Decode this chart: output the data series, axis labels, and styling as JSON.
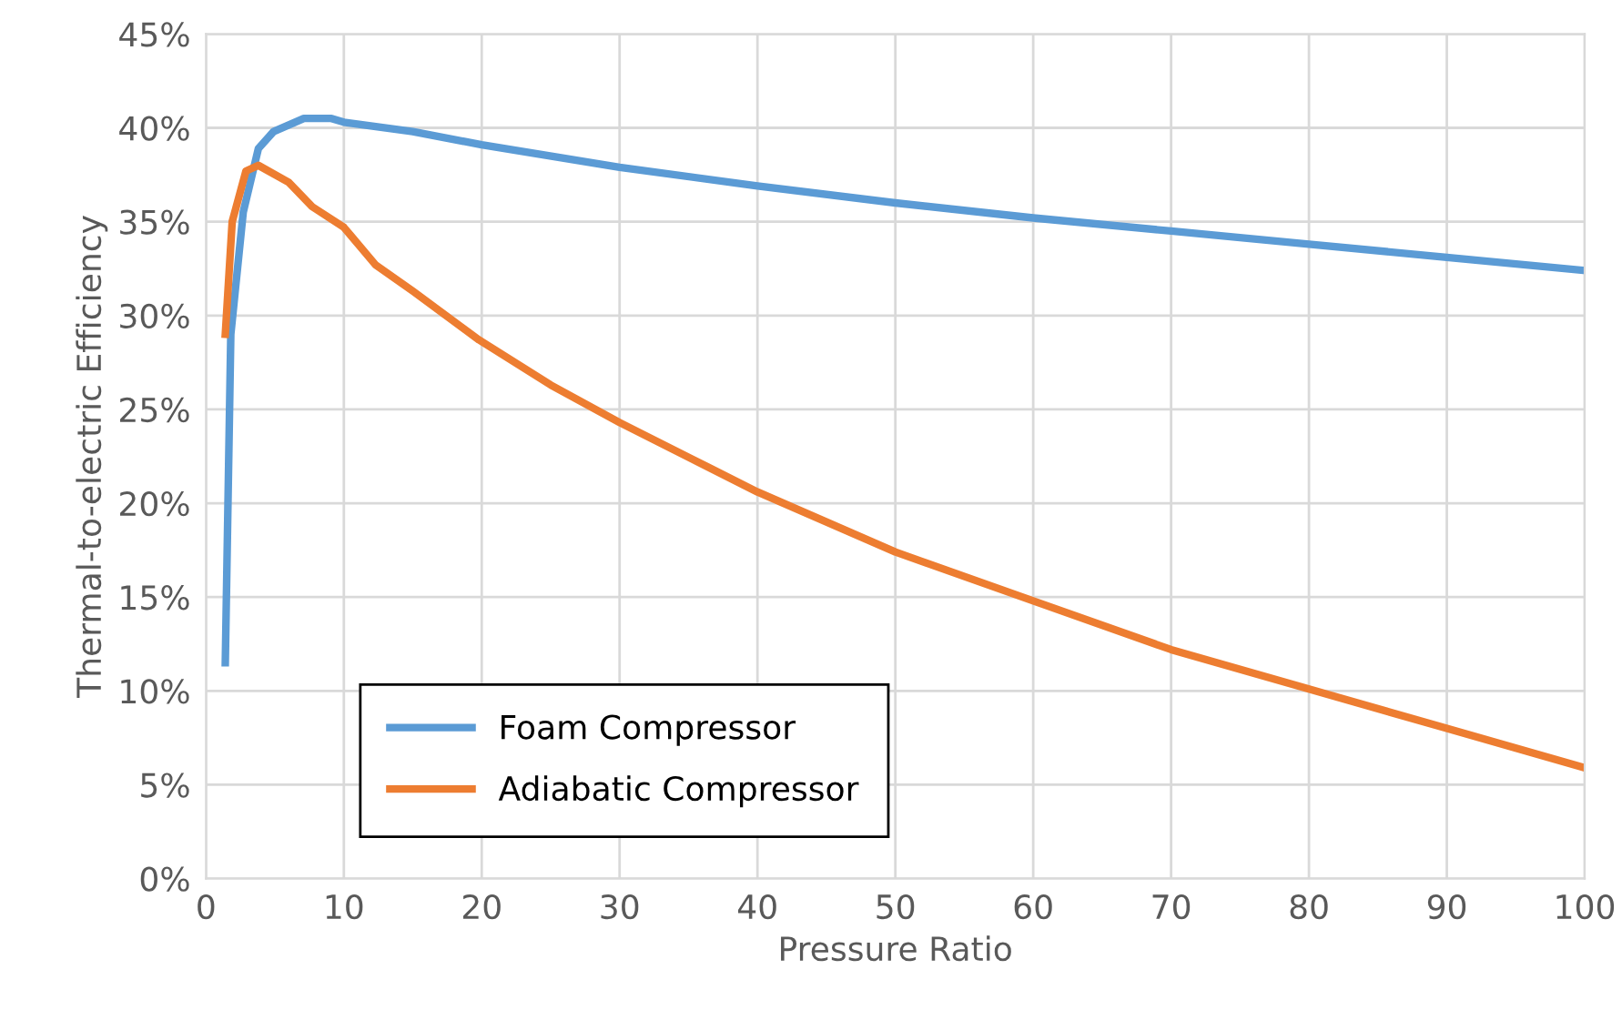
{
  "chart_data": {
    "type": "line",
    "xlabel": "Pressure Ratio",
    "ylabel": "Thermal-to-electric Efficiency",
    "xlim": [
      0,
      100
    ],
    "xticks": [
      0,
      10,
      20,
      30,
      40,
      50,
      60,
      70,
      80,
      90,
      100
    ],
    "ylim": [
      0,
      0.45
    ],
    "yticks": [
      {
        "value": 0,
        "label": "0%"
      },
      {
        "value": 0.05,
        "label": "5%"
      },
      {
        "value": 0.1,
        "label": "10%"
      },
      {
        "value": 0.15,
        "label": "15%"
      },
      {
        "value": 0.2,
        "label": "20%"
      },
      {
        "value": 0.25,
        "label": "25%"
      },
      {
        "value": 0.3,
        "label": "30%"
      },
      {
        "value": 0.35,
        "label": "35%"
      },
      {
        "value": 0.4,
        "label": "40%"
      },
      {
        "value": 0.45,
        "label": "45%"
      }
    ],
    "grid": true,
    "legend": "bottom left",
    "marker": "none",
    "line_style": "solid",
    "series": [
      {
        "name": "Foam Compressor",
        "color": "#5b9bd5",
        "x": [
          1.4,
          1.8,
          2.7,
          3.8,
          4.9,
          7.1,
          9.1,
          10,
          15,
          20,
          30,
          40,
          50,
          60,
          70,
          80,
          90,
          100
        ],
        "values": [
          0.115,
          0.29,
          0.355,
          0.389,
          0.398,
          0.405,
          0.405,
          0.403,
          0.398,
          0.391,
          0.379,
          0.369,
          0.36,
          0.352,
          0.345,
          0.338,
          0.331,
          0.324
        ]
      },
      {
        "name": "Adiabatic Compressor",
        "color": "#ed7d31",
        "x": [
          1.4,
          1.9,
          2.9,
          3.8,
          6,
          7.7,
          10,
          12.3,
          15,
          19.8,
          25,
          30,
          40,
          50,
          60,
          70,
          80,
          90,
          100
        ],
        "values": [
          0.29,
          0.35,
          0.377,
          0.38,
          0.371,
          0.358,
          0.347,
          0.327,
          0.313,
          0.287,
          0.263,
          0.243,
          0.206,
          0.174,
          0.148,
          0.122,
          0.101,
          0.08,
          0.059
        ]
      }
    ]
  }
}
